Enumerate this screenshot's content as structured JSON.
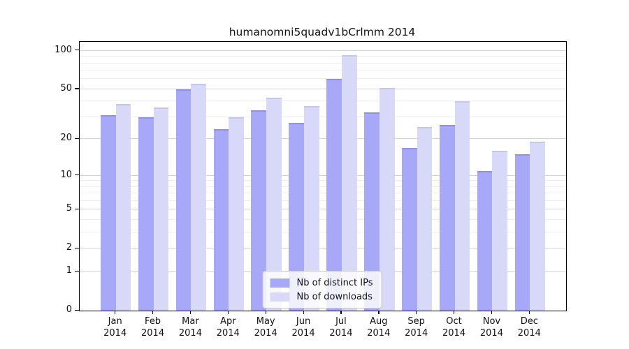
{
  "title": "humanomni5quadv1bCrlmm 2014",
  "chart_data": {
    "type": "bar",
    "title": "humanomni5quadv1bCrlmm 2014",
    "categories": [
      "Jan",
      "Feb",
      "Mar",
      "Apr",
      "May",
      "Jun",
      "Jul",
      "Aug",
      "Sep",
      "Oct",
      "Nov",
      "Dec"
    ],
    "year_label": "2014",
    "series": [
      {
        "name": "Nb of distinct IPs",
        "color": "#a8a8f8",
        "edge_color": "#9191e0",
        "values": [
          31,
          30,
          50,
          24,
          34,
          27,
          60,
          33,
          17,
          26,
          11,
          15
        ]
      },
      {
        "name": "Nb of downloads",
        "color": "#d8d8f8",
        "edge_color": "#c6c6ea",
        "values": [
          38,
          36,
          55,
          30,
          43,
          37,
          93,
          51,
          25,
          40,
          16,
          19
        ]
      }
    ],
    "yscale": "log1p",
    "ylim": [
      0,
      117
    ],
    "yticks": [
      0,
      1,
      2,
      5,
      10,
      20,
      50,
      100
    ],
    "minor_yticks": [
      3,
      4,
      6,
      7,
      8,
      9,
      30,
      40,
      60,
      70,
      80,
      90
    ],
    "grid": true,
    "legend_position": "lower center",
    "xlabel": "",
    "ylabel": ""
  },
  "colors": {
    "background": "#ffffff",
    "spine": "#000000",
    "major_grid": "#d2d2d2",
    "minor_grid": "#ededed",
    "text": "#111111",
    "legend_border": "#c9c9c9"
  }
}
